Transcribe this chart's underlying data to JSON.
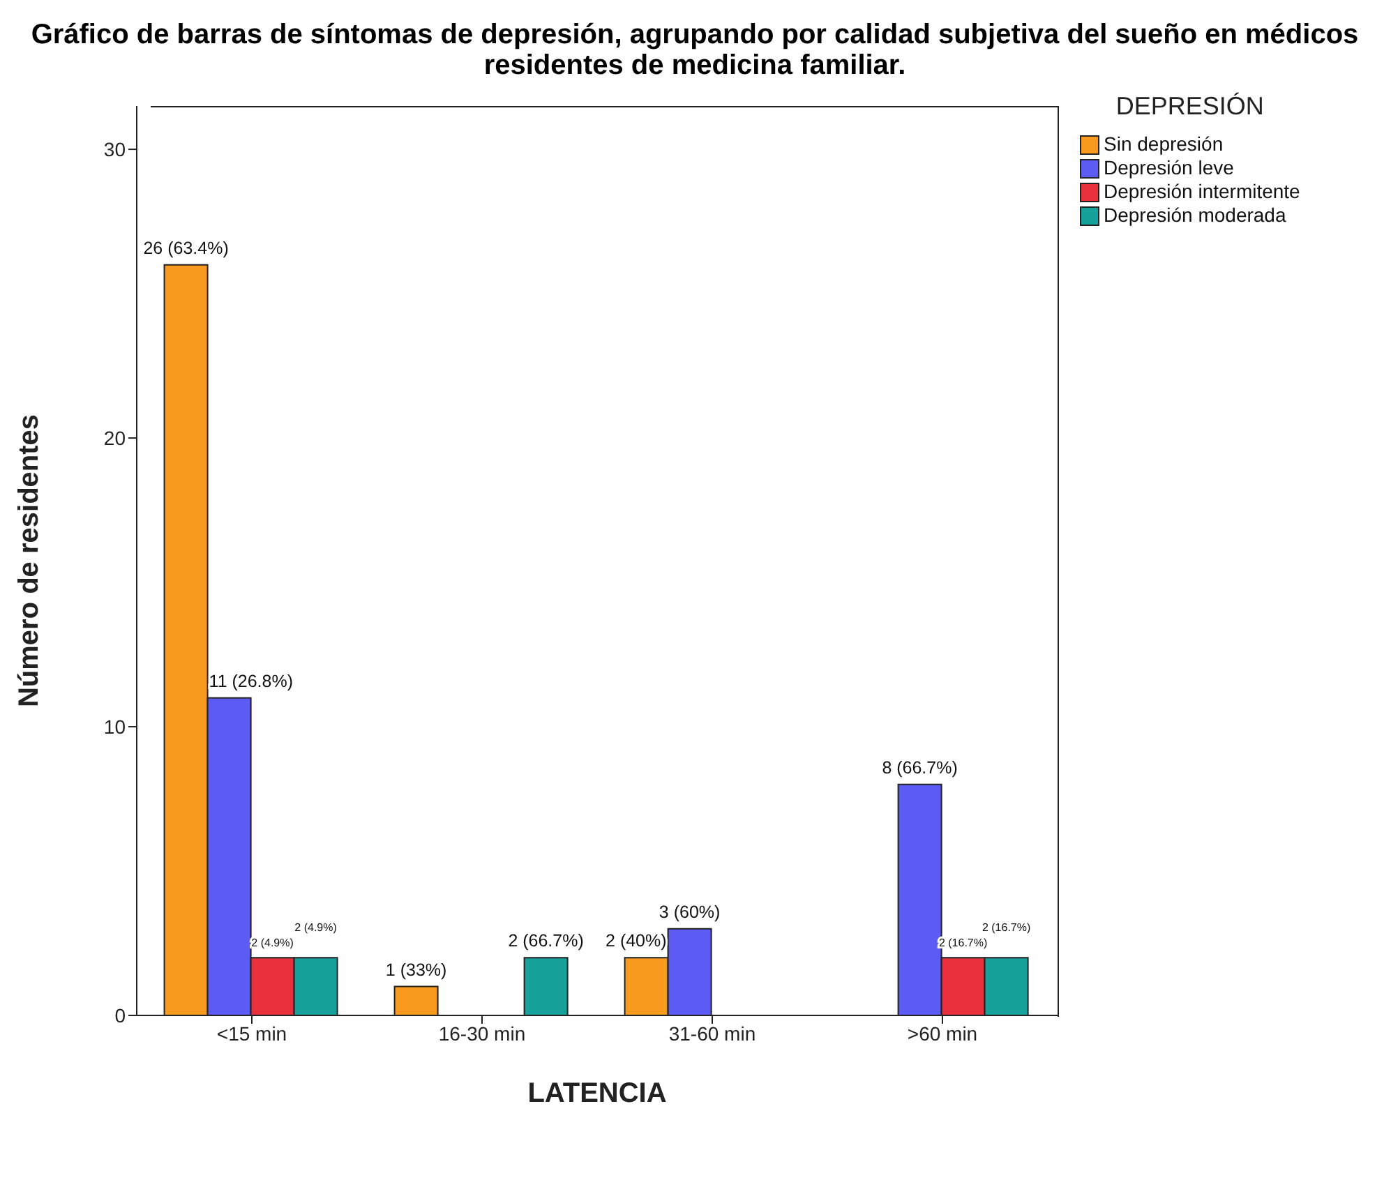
{
  "chart_data": {
    "type": "bar",
    "title": "Gráfico de barras de síntomas de depresión, agrupando por calidad subjetiva del sueño en médicos residentes de medicina familiar.",
    "xlabel": "LATENCIA",
    "ylabel": "Número de residentes",
    "legend_title": "DEPRESIÓN",
    "categories": [
      "<15 min",
      "16-30 min",
      "31-60 min",
      ">60 min"
    ],
    "series": [
      {
        "name": "Sin depresión",
        "color": "#f79a1e",
        "values": [
          26,
          1,
          2,
          0
        ],
        "value_labels": [
          "26 (63.4%)",
          "1 (33%)",
          "2 (40%)",
          null
        ]
      },
      {
        "name": "Depresión leve",
        "color": "#5c5cf5",
        "values": [
          11,
          0,
          3,
          8
        ],
        "value_labels": [
          "11 (26.8%)",
          null,
          "3 (60%)",
          "8 (66.7%)"
        ]
      },
      {
        "name": "Depresión intermitente",
        "color": "#e8313c",
        "values": [
          2,
          0,
          0,
          2
        ],
        "value_labels": [
          "2 (4.9%)",
          null,
          null,
          "2 (16.7%)"
        ]
      },
      {
        "name": "Depresión moderada",
        "color": "#16a19b",
        "values": [
          2,
          2,
          0,
          2
        ],
        "value_labels": [
          "2 (4.9%)",
          "2 (66.7%)",
          null,
          "2 (16.7%)"
        ]
      }
    ],
    "ylim": [
      0,
      31.5
    ],
    "yticks": [
      0,
      10,
      20,
      30
    ],
    "grid": false,
    "legend": "top right"
  }
}
